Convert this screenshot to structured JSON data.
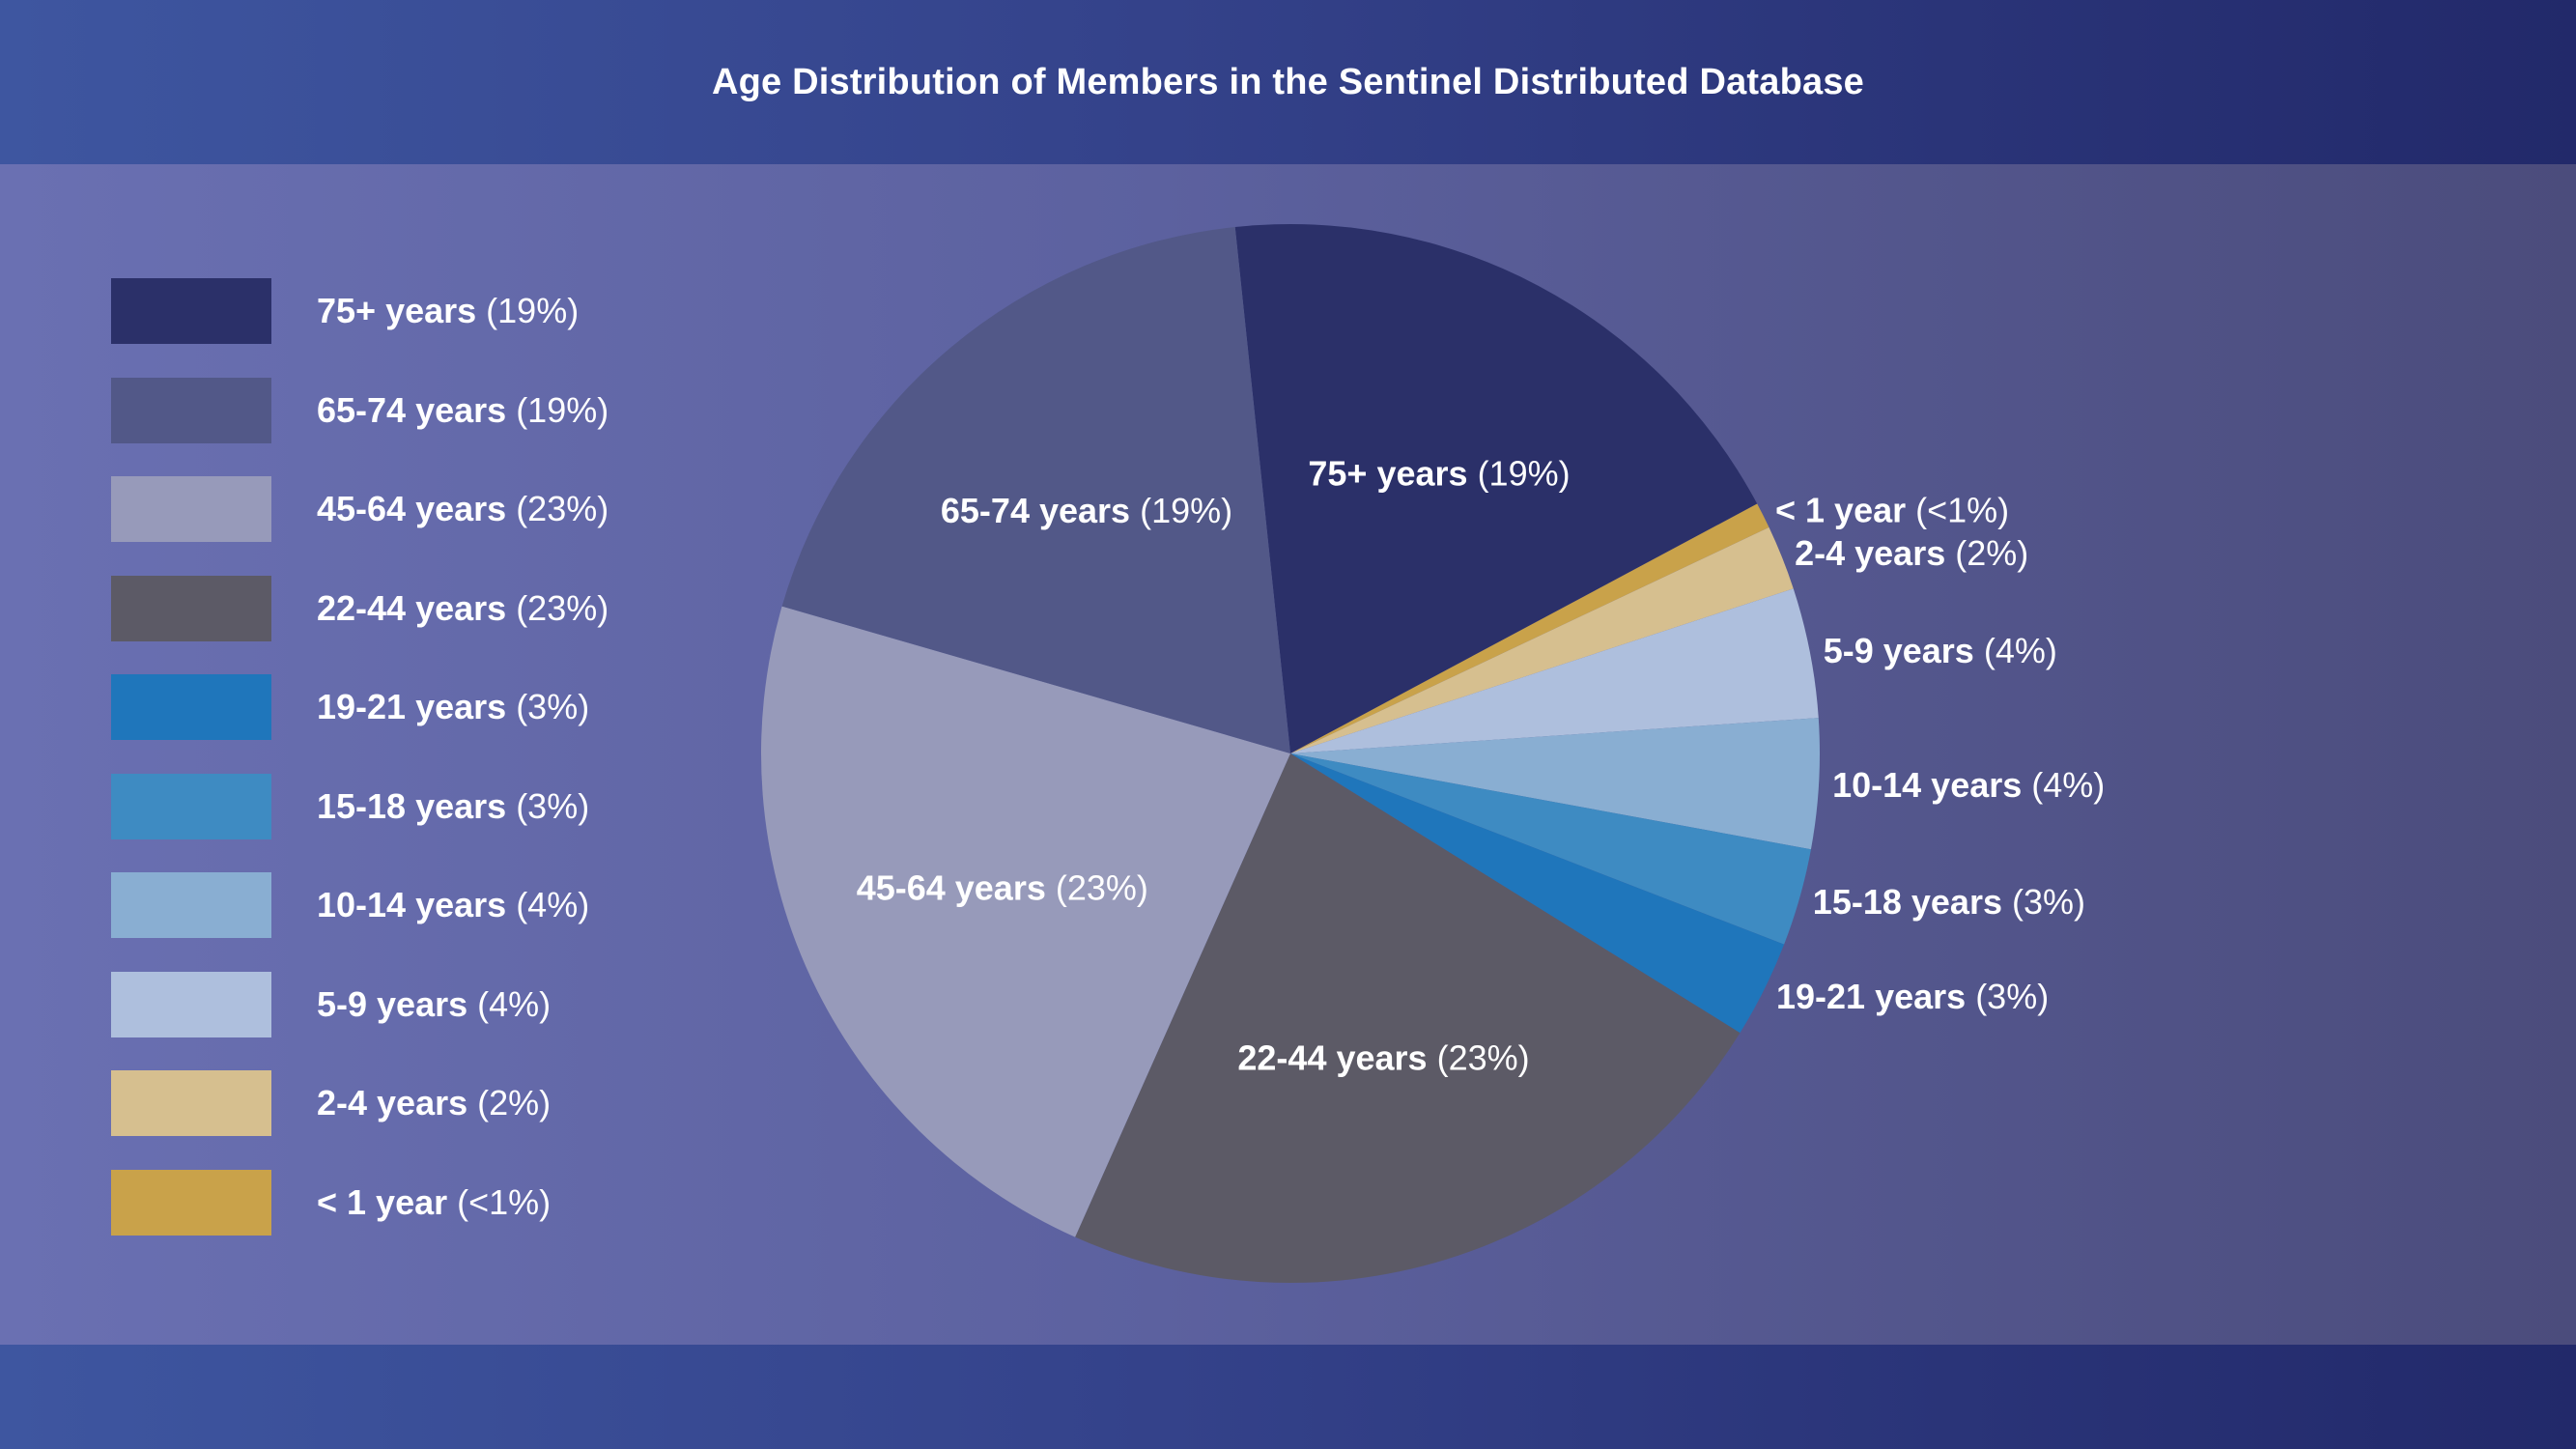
{
  "chart_data": {
    "type": "pie",
    "title": "Age Distribution of Members in the Sentinel Distributed Database",
    "legend_position": "left",
    "slices": [
      {
        "name": "75+ years",
        "pct_label": "(19%)",
        "value": 19,
        "color": "#2b3069"
      },
      {
        "name": "< 1 year",
        "pct_label": "(<1%)",
        "value": 0.8,
        "color": "#c9a24a"
      },
      {
        "name": "2-4 years",
        "pct_label": "(2%)",
        "value": 2,
        "color": "#d6bf8f"
      },
      {
        "name": "5-9 years",
        "pct_label": "(4%)",
        "value": 4,
        "color": "#aebfdd"
      },
      {
        "name": "10-14 years",
        "pct_label": "(4%)",
        "value": 4,
        "color": "#89aed2"
      },
      {
        "name": "15-18 years",
        "pct_label": "(3%)",
        "value": 3,
        "color": "#3e8bc2"
      },
      {
        "name": "19-21 years",
        "pct_label": "(3%)",
        "value": 3,
        "color": "#1f76bb"
      },
      {
        "name": "22-44 years",
        "pct_label": "(23%)",
        "value": 23,
        "color": "#5c5a66"
      },
      {
        "name": "45-64 years",
        "pct_label": "(23%)",
        "value": 23,
        "color": "#979aba"
      },
      {
        "name": "65-74 years",
        "pct_label": "(19%)",
        "value": 19,
        "color": "#525888"
      }
    ],
    "legend_order": [
      "75+ years",
      "65-74 years",
      "45-64 years",
      "22-44 years",
      "19-21 years",
      "15-18 years",
      "10-14 years",
      "5-9 years",
      "2-4 years",
      "< 1 year"
    ]
  }
}
